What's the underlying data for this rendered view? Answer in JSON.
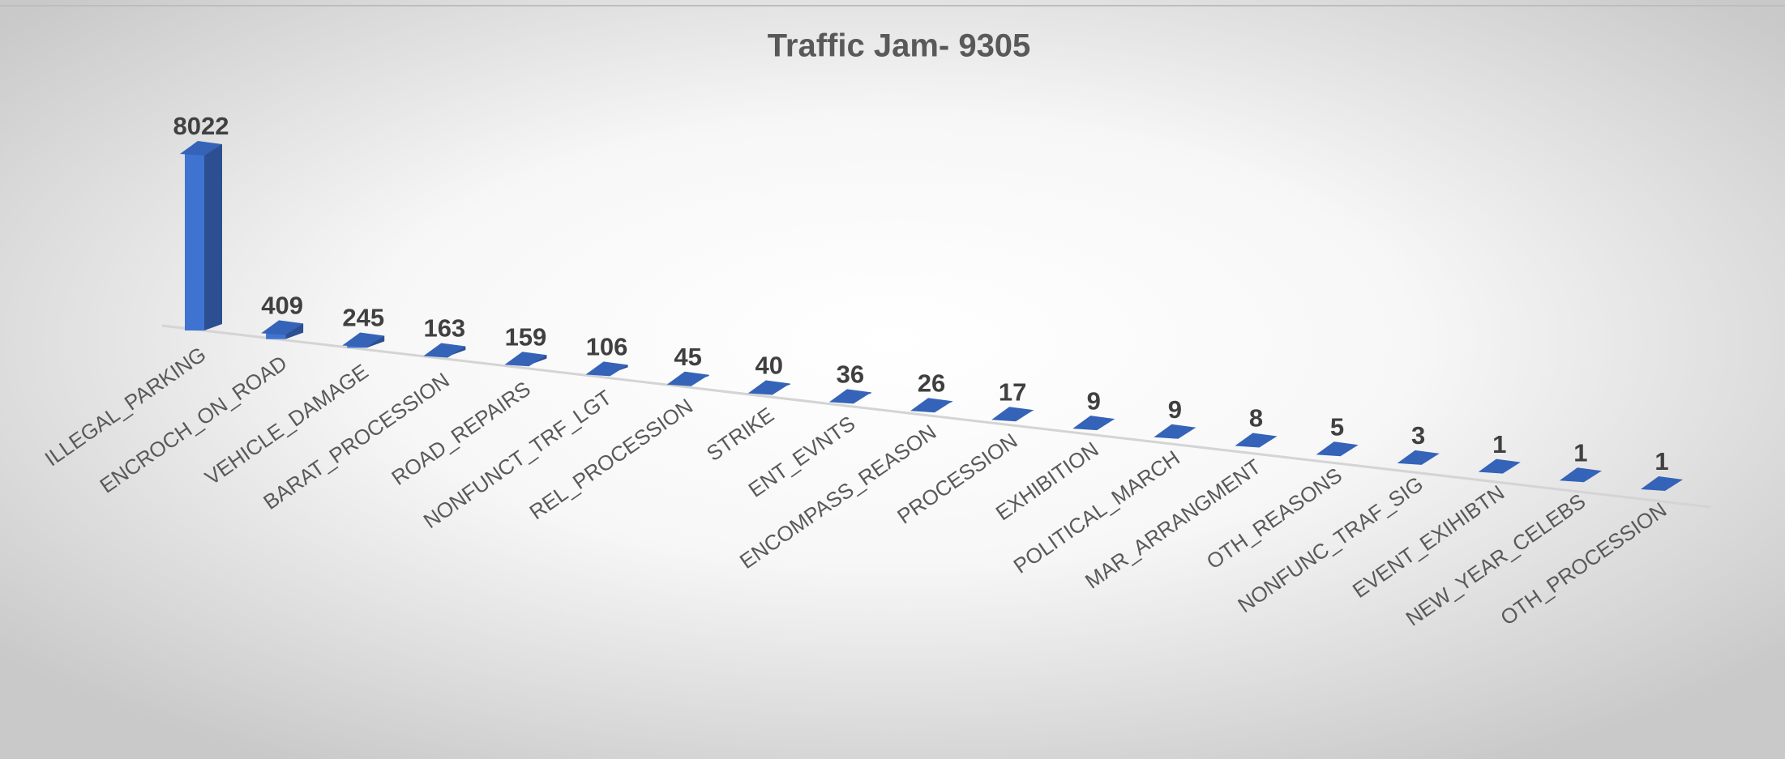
{
  "chart_data": {
    "type": "bar",
    "title": "Traffic Jam- 9305",
    "categories": [
      "ILLEGAL_PARKING",
      "ENCROCH_ON_ROAD",
      "VEHICLE_DAMAGE",
      "BARAT_PROCESSION",
      "ROAD_REPAIRS",
      "NONFUNCT_TRF_LGT",
      "REL_PROCESSION",
      "STRIKE",
      "ENT_EVNTS",
      "ENCOMPASS_REASON",
      "PROCESSION",
      "EXHIBITION",
      "POLITICAL_MARCH",
      "MAR_ARRANGMENT",
      "OTH_REASONS",
      "NONFUNC_TRAF_SIG",
      "EVENT_EXIHIBTN",
      "NEW_YEAR_CELEBS",
      "OTH_PROCESSION"
    ],
    "values": [
      8022,
      409,
      245,
      163,
      159,
      106,
      45,
      40,
      36,
      26,
      17,
      9,
      9,
      8,
      5,
      3,
      1,
      1,
      1
    ],
    "color": "#3f73d1"
  }
}
